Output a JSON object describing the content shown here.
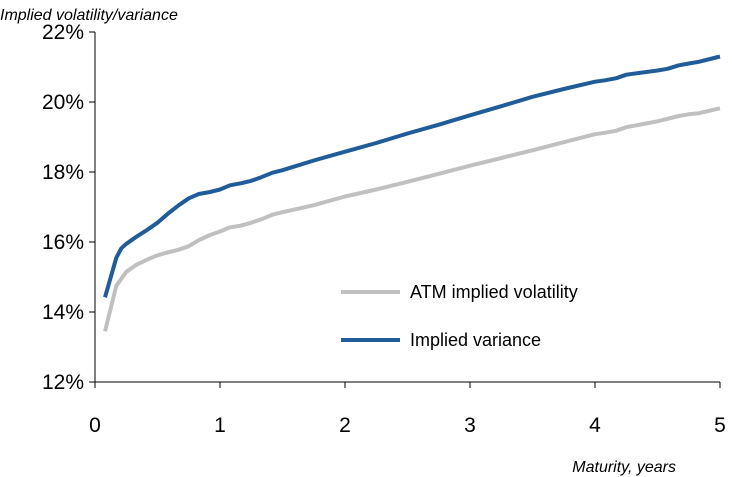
{
  "chart_data": {
    "type": "line",
    "ylabel": "Implied volatility/variance",
    "xlabel": "Maturity, years",
    "xlim": [
      0,
      5
    ],
    "ylim": [
      12,
      22
    ],
    "xticks": [
      "0",
      "1",
      "2",
      "3",
      "4",
      "5"
    ],
    "yticks": [
      "12%",
      "14%",
      "16%",
      "18%",
      "20%",
      "22%"
    ],
    "grid": false,
    "legend_position": "center-right",
    "series": [
      {
        "name": "ATM implied volatility",
        "color": "#c0c0c0",
        "points": [
          [
            0.08,
            13.45
          ],
          [
            0.17,
            14.75
          ],
          [
            0.25,
            15.15
          ],
          [
            0.33,
            15.35
          ],
          [
            0.42,
            15.5
          ],
          [
            0.5,
            15.62
          ],
          [
            0.58,
            15.7
          ],
          [
            0.67,
            15.78
          ],
          [
            0.75,
            15.88
          ],
          [
            0.83,
            16.05
          ],
          [
            0.92,
            16.2
          ],
          [
            1.0,
            16.3
          ],
          [
            1.08,
            16.42
          ],
          [
            1.17,
            16.47
          ],
          [
            1.25,
            16.55
          ],
          [
            1.33,
            16.65
          ],
          [
            1.42,
            16.78
          ],
          [
            1.5,
            16.85
          ],
          [
            1.75,
            17.05
          ],
          [
            2.0,
            17.3
          ],
          [
            2.25,
            17.5
          ],
          [
            2.5,
            17.72
          ],
          [
            2.75,
            17.95
          ],
          [
            3.0,
            18.18
          ],
          [
            3.25,
            18.4
          ],
          [
            3.5,
            18.62
          ],
          [
            3.75,
            18.85
          ],
          [
            4.0,
            19.08
          ],
          [
            4.08,
            19.12
          ],
          [
            4.17,
            19.18
          ],
          [
            4.25,
            19.28
          ],
          [
            4.5,
            19.45
          ],
          [
            4.67,
            19.6
          ],
          [
            4.75,
            19.65
          ],
          [
            4.83,
            19.68
          ],
          [
            5.0,
            19.82
          ]
        ]
      },
      {
        "name": "Implied variance",
        "color": "#1f5c99",
        "points": [
          [
            0.08,
            14.42
          ],
          [
            0.17,
            15.55
          ],
          [
            0.21,
            15.82
          ],
          [
            0.25,
            15.95
          ],
          [
            0.33,
            16.15
          ],
          [
            0.42,
            16.35
          ],
          [
            0.5,
            16.55
          ],
          [
            0.58,
            16.8
          ],
          [
            0.67,
            17.05
          ],
          [
            0.75,
            17.25
          ],
          [
            0.83,
            17.37
          ],
          [
            0.92,
            17.43
          ],
          [
            1.0,
            17.5
          ],
          [
            1.08,
            17.62
          ],
          [
            1.17,
            17.68
          ],
          [
            1.25,
            17.75
          ],
          [
            1.33,
            17.85
          ],
          [
            1.42,
            17.98
          ],
          [
            1.5,
            18.05
          ],
          [
            1.75,
            18.33
          ],
          [
            2.0,
            18.58
          ],
          [
            2.25,
            18.83
          ],
          [
            2.5,
            19.1
          ],
          [
            2.75,
            19.35
          ],
          [
            3.0,
            19.62
          ],
          [
            3.25,
            19.88
          ],
          [
            3.5,
            20.15
          ],
          [
            3.75,
            20.37
          ],
          [
            4.0,
            20.58
          ],
          [
            4.08,
            20.62
          ],
          [
            4.17,
            20.68
          ],
          [
            4.25,
            20.78
          ],
          [
            4.5,
            20.9
          ],
          [
            4.58,
            20.95
          ],
          [
            4.67,
            21.05
          ],
          [
            4.75,
            21.1
          ],
          [
            4.83,
            21.15
          ],
          [
            5.0,
            21.3
          ]
        ]
      }
    ]
  }
}
